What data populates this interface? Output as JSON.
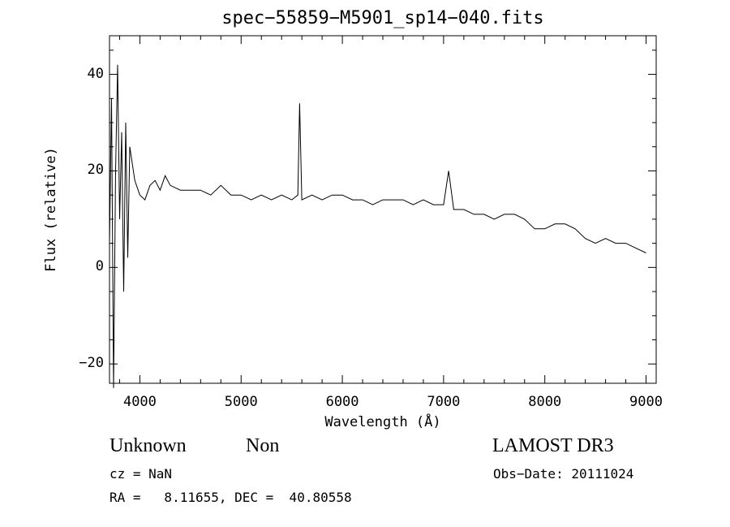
{
  "chart_data": {
    "type": "line",
    "title": "spec−55859−M5901_sp14−040.fits",
    "xlabel": "Wavelength (Å)",
    "ylabel": "Flux (relative)",
    "xlim": [
      3700,
      9100
    ],
    "ylim": [
      -24,
      48
    ],
    "xticks": [
      4000,
      5000,
      6000,
      7000,
      8000,
      9000
    ],
    "yticks": [
      -20,
      0,
      20,
      40
    ],
    "ytick_labels": [
      "−20",
      "0",
      "20",
      "40"
    ],
    "grid": false,
    "series": [
      {
        "color": "#000000",
        "x": [
          3700,
          3720,
          3740,
          3760,
          3780,
          3800,
          3820,
          3840,
          3860,
          3880,
          3900,
          3950,
          4000,
          4050,
          4100,
          4150,
          4200,
          4250,
          4300,
          4400,
          4500,
          4600,
          4700,
          4800,
          4900,
          5000,
          5100,
          5200,
          5300,
          5400,
          5500,
          5560,
          5578,
          5600,
          5700,
          5800,
          5900,
          6000,
          6100,
          6200,
          6300,
          6400,
          6500,
          6600,
          6700,
          6800,
          6900,
          7000,
          7050,
          7100,
          7200,
          7300,
          7400,
          7500,
          7600,
          7700,
          7800,
          7900,
          8000,
          8100,
          8200,
          8300,
          8400,
          8500,
          8600,
          8700,
          8800,
          8900,
          9000
        ],
        "y": [
          5,
          35,
          -25,
          20,
          42,
          10,
          28,
          -5,
          30,
          2,
          25,
          18,
          15,
          14,
          17,
          18,
          16,
          19,
          17,
          16,
          16,
          16,
          15,
          17,
          15,
          15,
          14,
          15,
          14,
          15,
          14,
          15,
          34,
          14,
          15,
          14,
          15,
          15,
          14,
          14,
          13,
          14,
          14,
          14,
          13,
          14,
          13,
          13,
          20,
          12,
          12,
          11,
          11,
          10,
          11,
          11,
          10,
          8,
          8,
          9,
          9,
          8,
          6,
          5,
          6,
          5,
          5,
          4,
          3
        ]
      }
    ],
    "annotations": {
      "object_class": "Unknown",
      "subclass": "Non",
      "survey": "LAMOST DR3",
      "cz": "cz = NaN",
      "obs_date": "Obs−Date: 20111024",
      "radec": "RA =   8.11655, DEC =  40.80558"
    }
  }
}
